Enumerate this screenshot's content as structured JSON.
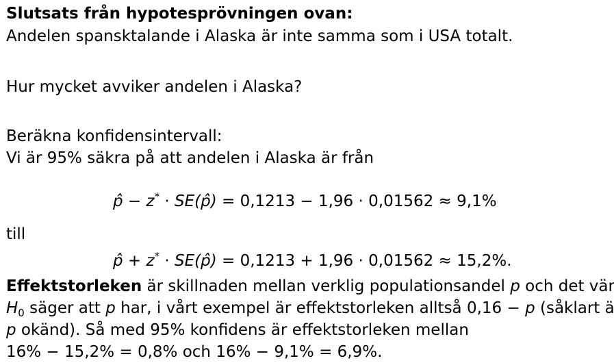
{
  "heading": "Slutsats från hypotesprövningen ovan:",
  "conclusion": "Andelen spansktalande i Alaska är inte samma som i USA totalt.",
  "question": "Hur mycket avviker andelen i Alaska?",
  "ci_intro": "Beräkna konfidensintervall:",
  "ci_sentence": "Vi är 95% säkra på att andelen i Alaska är från",
  "formula_lower": {
    "phat": "p̂",
    "op": " − ",
    "z": "z",
    "star": "*",
    "dot": " · ",
    "se": "SE",
    "arg": "(p̂)",
    "rhs": " = 0,1213 − 1,96 · 0,01562 ≈ 9,1%"
  },
  "till": "till",
  "formula_upper": {
    "phat": "p̂",
    "op": " + ",
    "z": "z",
    "star": "*",
    "dot": " · ",
    "se": "SE",
    "arg": "(p̂)",
    "rhs": " = 0,1213 + 1,96 · 0,01562 ≈ 15,2%."
  },
  "effect": {
    "term": "Effektstorleken",
    "line1_rest": " är skillnaden mellan verklig populationsandel ",
    "p": "p",
    "line1_end": " och det värde",
    "h": "H",
    "h_sub": "0",
    "line2_a": " säger att ",
    "line2_b": " har, i vårt exempel är effektstorleken alltså 0,16 − ",
    "line2_c": " (såklart är",
    "line3_rest": " okänd). Så med 95% konfidens är effektstorleken mellan",
    "line4": "16% − 15,2% = 0,8% och 16% − 9,1% = 6,9%."
  }
}
